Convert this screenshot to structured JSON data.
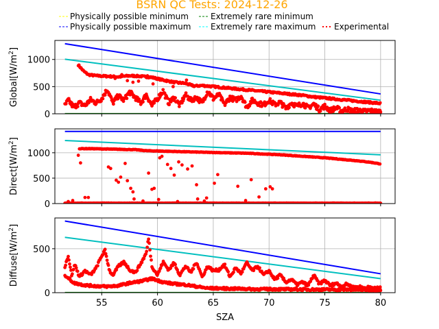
{
  "chart_data": {
    "type": "scatter",
    "title": "BSRN QC Tests: 2024-12-26",
    "xlabel": "SZA",
    "xlim": [
      50.8,
      81.3
    ],
    "xticks": [
      55,
      60,
      65,
      70,
      75,
      80
    ],
    "grid": true,
    "legend": {
      "placement": "top",
      "entries": [
        {
          "label": "Physically possible minimum",
          "color": "#ffff00",
          "style": "dashed"
        },
        {
          "label": "Extremely rare minimum",
          "color": "#008000",
          "style": "dashed"
        },
        {
          "label": "Physically possible maximum",
          "color": "#0000ff",
          "style": "dashed"
        },
        {
          "label": "Extremely rare maximum",
          "color": "#00ffff",
          "style": "dashed"
        },
        {
          "label": "Experimental",
          "color": "#ff0000",
          "style": "dotted"
        }
      ]
    },
    "panels": [
      {
        "name": "global",
        "ylabel": "Global[W/m$^2$]",
        "ylabel_text": "Global[W/m",
        "ylim": [
          0,
          1350
        ],
        "yticks": [
          0,
          500,
          1000
        ],
        "lines": [
          {
            "name": "Physically possible maximum",
            "color": "#0000ff",
            "x": [
              51.7,
              80
            ],
            "y": [
              1290,
              365
            ]
          },
          {
            "name": "Extremely rare maximum",
            "color": "#00bfbf",
            "x": [
              51.7,
              80
            ],
            "y": [
              1005,
              250
            ]
          },
          {
            "name": "Physically possible minimum",
            "color": "#ffff00",
            "x": [
              51.7,
              80
            ],
            "y": [
              -4,
              -4
            ]
          },
          {
            "name": "Extremely rare minimum",
            "color": "#008000",
            "x": [
              51.7,
              80
            ],
            "y": [
              2,
              2
            ]
          }
        ],
        "series_upper": {
          "x": [
            52.9,
            53.1,
            53.4,
            53.8,
            54.5,
            55.5,
            56.5,
            57.5,
            58.5,
            59.5,
            60.5,
            61.5,
            62.5,
            63.3,
            64,
            65,
            66,
            67,
            68,
            69,
            70,
            71,
            72,
            73,
            74,
            75,
            76,
            77,
            78,
            79,
            80
          ],
          "y": [
            900,
            850,
            780,
            720,
            700,
            690,
            680,
            700,
            690,
            670,
            620,
            580,
            560,
            510,
            520,
            500,
            480,
            460,
            440,
            420,
            400,
            380,
            360,
            340,
            310,
            290,
            270,
            250,
            230,
            210,
            190
          ]
        },
        "series_lower": {
          "x": [
            51.7,
            52,
            52.5,
            53,
            53.5,
            54,
            54.5,
            55,
            55.5,
            56,
            56.5,
            57,
            57.5,
            58,
            58.5,
            59,
            59.5,
            60,
            60.5,
            61,
            61.5,
            62,
            62.5,
            63,
            63.5,
            64,
            64.5,
            65,
            65.5,
            66,
            66.5,
            67,
            67.5,
            68,
            68.5,
            69,
            69.5,
            70,
            70.5,
            71,
            71.5,
            72,
            72.5,
            73,
            73.5,
            74,
            74.5,
            75,
            75.5,
            76,
            76.5,
            77,
            77.5,
            78,
            78.5,
            79,
            79.5,
            80
          ],
          "y": [
            150,
            250,
            120,
            200,
            150,
            260,
            200,
            280,
            450,
            200,
            330,
            250,
            400,
            300,
            200,
            350,
            150,
            280,
            420,
            200,
            300,
            150,
            350,
            250,
            300,
            200,
            420,
            280,
            350,
            170,
            300,
            250,
            330,
            120,
            250,
            200,
            160,
            250,
            170,
            210,
            100,
            200,
            140,
            190,
            110,
            180,
            80,
            140,
            60,
            110,
            50,
            90,
            45,
            70,
            40,
            60,
            40,
            40
          ]
        },
        "scatter_extra": {
          "x": [
            56.2,
            56.8,
            57.3,
            57.8,
            58.3,
            59.1,
            59.6,
            60.8,
            61.4,
            61.9,
            62.6,
            63.1
          ],
          "y": [
            650,
            720,
            610,
            580,
            600,
            700,
            550,
            620,
            500,
            560,
            620,
            520
          ]
        }
      },
      {
        "name": "direct",
        "ylabel": "Direct[W/m$^2$]",
        "ylabel_text": "Direct[W/m",
        "ylim": [
          0,
          1470
        ],
        "yticks": [
          0,
          500,
          1000
        ],
        "lines": [
          {
            "name": "Physically possible maximum",
            "color": "#0000ff",
            "x": [
              51.7,
              80
            ],
            "y": [
              1420,
              1420
            ]
          },
          {
            "name": "Extremely rare maximum",
            "color": "#00bfbf",
            "x": [
              51.7,
              80
            ],
            "y": [
              1240,
              960
            ]
          },
          {
            "name": "Physically possible minimum",
            "color": "#ffff00",
            "x": [
              51.7,
              80
            ],
            "y": [
              -4,
              -4
            ]
          },
          {
            "name": "Extremely rare minimum",
            "color": "#008000",
            "x": [
              51.7,
              80
            ],
            "y": [
              1,
              1
            ]
          }
        ],
        "series_upper": {
          "x": [
            53,
            54,
            55,
            56,
            57,
            58,
            59,
            64,
            65,
            66,
            67,
            68,
            69,
            70,
            71,
            72,
            73,
            74,
            75,
            76,
            77,
            78,
            79,
            80
          ],
          "y": [
            1080,
            1080,
            1075,
            1070,
            1065,
            1060,
            1040,
            1010,
            1005,
            1000,
            995,
            990,
            980,
            970,
            960,
            945,
            930,
            915,
            900,
            880,
            860,
            840,
            815,
            780
          ]
        },
        "series_zero": {
          "x_start": 51.7,
          "x_end": 80,
          "y": 5
        },
        "scatter_extra": {
          "x": [
            52.9,
            53.1,
            53.5,
            55.6,
            55.8,
            56.3,
            56.5,
            56.7,
            57.1,
            57.3,
            57.6,
            57.8,
            59.2,
            59.5,
            59.7,
            60.2,
            60.4,
            60.9,
            61.2,
            61.5,
            61.9,
            62.2,
            62.7,
            63.1,
            63.5,
            64.2,
            65.1,
            65.4,
            67.2,
            68.4,
            69.7,
            70.1,
            70.3,
            52.0,
            52.4,
            53.8,
            57.9,
            58.7,
            60.1,
            61.8,
            63.6,
            64.4,
            67.9,
            69.1
          ],
          "y": [
            950,
            800,
            120,
            720,
            690,
            460,
            420,
            520,
            790,
            450,
            300,
            230,
            600,
            280,
            300,
            900,
            930,
            770,
            690,
            560,
            820,
            760,
            680,
            740,
            370,
            50,
            400,
            570,
            340,
            470,
            290,
            330,
            290,
            40,
            60,
            120,
            90,
            50,
            80,
            40,
            90,
            110,
            60,
            130
          ]
        }
      },
      {
        "name": "diffuse",
        "ylabel": "Diffuse[W/m$^2$]",
        "ylabel_text": "Diffuse[W/m",
        "ylim": [
          0,
          850
        ],
        "yticks": [
          0,
          500
        ],
        "lines": [
          {
            "name": "Physically possible maximum",
            "color": "#0000ff",
            "x": [
              51.7,
              80
            ],
            "y": [
              815,
              215
            ]
          },
          {
            "name": "Extremely rare maximum",
            "color": "#00bfbf",
            "x": [
              51.7,
              80
            ],
            "y": [
              630,
              160
            ]
          },
          {
            "name": "Physically possible minimum",
            "color": "#ffff00",
            "x": [
              51.7,
              80
            ],
            "y": [
              -3,
              -3
            ]
          },
          {
            "name": "Extremely rare minimum",
            "color": "#008000",
            "x": [
              51.7,
              80
            ],
            "y": [
              1,
              1
            ]
          }
        ],
        "series_lower": {
          "x": [
            51.7,
            52.5,
            53.5,
            54.5,
            55.5,
            56.5,
            57.5,
            58.5,
            59.5,
            60.5,
            61.5,
            62.5,
            63.5,
            64.5,
            65.5,
            66.5,
            67.5,
            68.5,
            69.5,
            70.5,
            71.5,
            72.5,
            73.5,
            74.5,
            75.5,
            76.5,
            77.5,
            78.5,
            79.5,
            80
          ],
          "y": [
            200,
            110,
            85,
            75,
            70,
            80,
            110,
            130,
            160,
            120,
            100,
            90,
            70,
            50,
            50,
            45,
            45,
            40,
            40,
            40,
            38,
            38,
            36,
            36,
            35,
            35,
            34,
            34,
            33,
            33
          ]
        },
        "series_upper": {
          "x": [
            51.7,
            52,
            52.3,
            52.6,
            53,
            53.5,
            54,
            54.5,
            55,
            55.3,
            55.7,
            56,
            56.5,
            57,
            57.5,
            58,
            58.5,
            59,
            59.2,
            59.5,
            60,
            60.5,
            61,
            61.5,
            62,
            62.5,
            63,
            63.5,
            64,
            64.5,
            65,
            65.5,
            66,
            66.5,
            67,
            67.5,
            68,
            68.5,
            69,
            69.5,
            70,
            70.5,
            71,
            71.5,
            72,
            72.5,
            73,
            73.5,
            74,
            74.5,
            75,
            75.5,
            76,
            76.5,
            77,
            77.5,
            78,
            78.5,
            79,
            79.5,
            80
          ],
          "y": [
            300,
            420,
            200,
            320,
            180,
            250,
            200,
            280,
            420,
            480,
            250,
            200,
            300,
            350,
            260,
            230,
            330,
            450,
            620,
            300,
            200,
            350,
            260,
            340,
            200,
            300,
            230,
            350,
            180,
            300,
            250,
            260,
            320,
            180,
            280,
            220,
            340,
            250,
            300,
            200,
            250,
            150,
            200,
            120,
            150,
            90,
            120,
            80,
            200,
            100,
            140,
            80,
            110,
            70,
            100,
            60,
            70,
            55,
            60,
            50,
            50
          ]
        }
      }
    ]
  }
}
